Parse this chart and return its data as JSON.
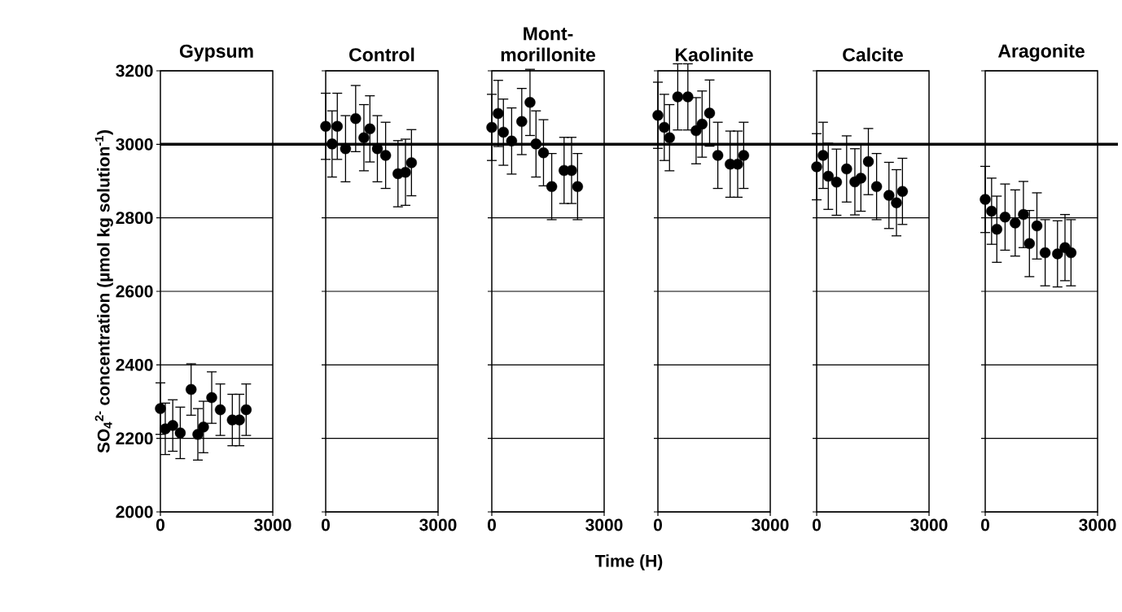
{
  "chart_data": [
    {
      "type": "scatter",
      "title": "Gypsum",
      "ylabel": "SO$_{4}$$^{2-}$ concentration (µmol kg solution$^{-1}$)",
      "x": [
        0,
        130,
        330,
        530,
        820,
        1000,
        1150,
        1370,
        1600,
        1920,
        2110,
        2290
      ],
      "values": [
        2281,
        2226,
        2235,
        2215,
        2333,
        2211,
        2231,
        2311,
        2278,
        2250,
        2250,
        2278
      ],
      "errors": [
        70,
        70,
        70,
        70,
        70,
        70,
        70,
        70,
        70,
        70,
        70,
        70
      ],
      "color": "#000000",
      "marker": "circle",
      "xlim": [
        0,
        3000
      ],
      "xticks": [
        0,
        3000
      ],
      "ylim": [
        2000,
        3200
      ],
      "yticks": [
        2000,
        2200,
        2400,
        2600,
        2800,
        3000,
        3200
      ],
      "grid": "y",
      "ref_lines": [
        {
          "axis": "y",
          "value": 3000
        }
      ]
    },
    {
      "type": "scatter",
      "title": "Control",
      "x": [
        0,
        170,
        310,
        530,
        800,
        1020,
        1180,
        1380,
        1600,
        1930,
        2130,
        2290
      ],
      "values": [
        3049,
        3001,
        3049,
        2988,
        3070,
        3018,
        3042,
        2988,
        2970,
        2920,
        2924,
        2950
      ],
      "errors": [
        90,
        90,
        90,
        90,
        90,
        90,
        90,
        90,
        90,
        90,
        90,
        90
      ],
      "color": "#000000",
      "marker": "circle",
      "xlim": [
        0,
        3000
      ],
      "xticks": [
        0,
        3000
      ],
      "ylim": [
        2000,
        3200
      ],
      "yticks": [
        2000,
        2200,
        2400,
        2600,
        2800,
        3000,
        3200
      ],
      "grid": "y",
      "tick_labels": "x",
      "ref_lines": [
        {
          "axis": "y",
          "value": 3000
        }
      ]
    },
    {
      "type": "scatter",
      "title": "Mont-morillonite",
      "xlabel": "Time (H)",
      "x": [
        0,
        170,
        310,
        530,
        800,
        1020,
        1180,
        1380,
        1600,
        1930,
        2130,
        2290
      ],
      "values": [
        3046,
        3084,
        3033,
        3009,
        3062,
        3114,
        3001,
        2977,
        2885,
        2929,
        2929,
        2885
      ],
      "errors": [
        90,
        90,
        90,
        90,
        90,
        90,
        90,
        90,
        90,
        90,
        90,
        90
      ],
      "color": "#000000",
      "marker": "circle",
      "xlim": [
        0,
        3000
      ],
      "xticks": [
        0,
        3000
      ],
      "ylim": [
        2000,
        3200
      ],
      "yticks": [
        2000,
        2200,
        2400,
        2600,
        2800,
        3000,
        3200
      ],
      "grid": "y",
      "tick_labels": "x",
      "ref_lines": [
        {
          "axis": "y",
          "value": 3000
        }
      ]
    },
    {
      "type": "scatter",
      "title": "Kaolinite",
      "x": [
        0,
        170,
        310,
        530,
        800,
        1020,
        1180,
        1380,
        1600,
        1930,
        2130,
        2290
      ],
      "values": [
        3079,
        3046,
        3018,
        3129,
        3129,
        3037,
        3055,
        3085,
        2970,
        2946,
        2946,
        2970
      ],
      "errors": [
        90,
        90,
        90,
        90,
        90,
        90,
        90,
        90,
        90,
        90,
        90,
        90
      ],
      "color": "#000000",
      "marker": "circle",
      "xlim": [
        0,
        3000
      ],
      "xticks": [
        0,
        3000
      ],
      "ylim": [
        2000,
        3200
      ],
      "yticks": [
        2000,
        2200,
        2400,
        2600,
        2800,
        3000,
        3200
      ],
      "grid": "y",
      "tick_labels": "x",
      "ref_lines": [
        {
          "axis": "y",
          "value": 3000
        }
      ]
    },
    {
      "type": "scatter",
      "title": "Calcite",
      "x": [
        0,
        170,
        310,
        530,
        800,
        1020,
        1180,
        1380,
        1600,
        1930,
        2130,
        2290
      ],
      "values": [
        2939,
        2970,
        2913,
        2897,
        2933,
        2898,
        2908,
        2953,
        2885,
        2861,
        2841,
        2872
      ],
      "errors": [
        90,
        90,
        90,
        90,
        90,
        90,
        90,
        90,
        90,
        90,
        90,
        90
      ],
      "color": "#000000",
      "marker": "circle",
      "xlim": [
        0,
        3000
      ],
      "xticks": [
        0,
        3000
      ],
      "ylim": [
        2000,
        3200
      ],
      "yticks": [
        2000,
        2200,
        2400,
        2600,
        2800,
        3000,
        3200
      ],
      "grid": "y",
      "tick_labels": "x",
      "ref_lines": [
        {
          "axis": "y",
          "value": 3000
        }
      ]
    },
    {
      "type": "scatter",
      "title": "Aragonite",
      "x": [
        0,
        170,
        310,
        530,
        800,
        1020,
        1180,
        1380,
        1600,
        1930,
        2130,
        2290
      ],
      "values": [
        2850,
        2818,
        2769,
        2802,
        2786,
        2809,
        2730,
        2778,
        2705,
        2702,
        2719,
        2705
      ],
      "errors": [
        90,
        90,
        90,
        90,
        90,
        90,
        90,
        90,
        90,
        90,
        90,
        90
      ],
      "color": "#000000",
      "marker": "circle",
      "xlim": [
        0,
        3000
      ],
      "xticks": [
        0,
        3000
      ],
      "ylim": [
        2000,
        3200
      ],
      "yticks": [
        2000,
        2200,
        2400,
        2600,
        2800,
        3000,
        3200
      ],
      "grid": "y",
      "tick_labels": "x",
      "ref_lines": [
        {
          "axis": "y",
          "value": 3000
        }
      ]
    }
  ]
}
